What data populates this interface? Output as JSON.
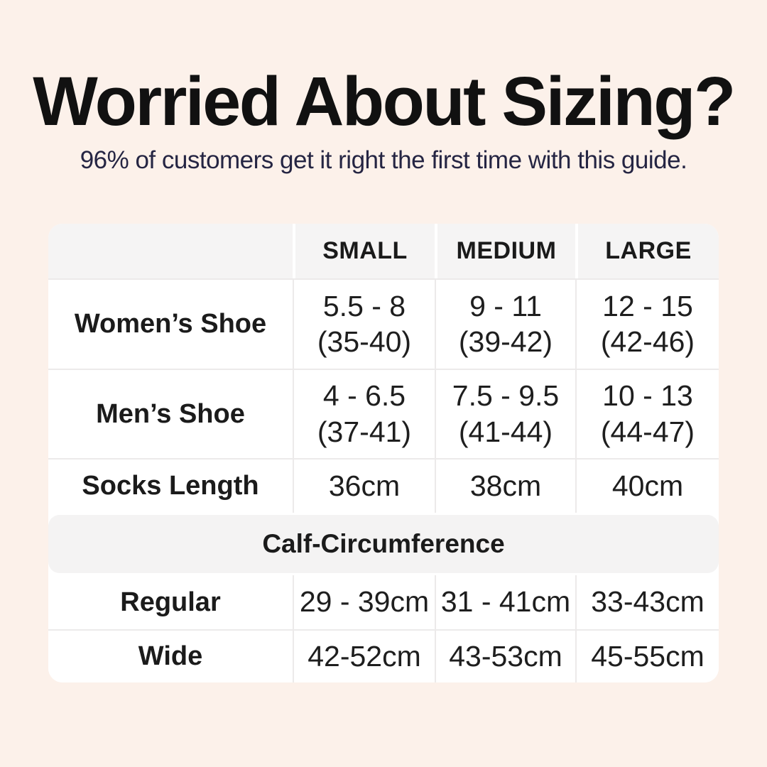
{
  "colors": {
    "background": "#fcf1ea",
    "table_background": "#ffffff",
    "header_band": "#f5f4f4",
    "section_band": "#f4f3f3",
    "divider": "#eceaea",
    "title_text": "#111111",
    "subtitle_text": "#252543",
    "body_text": "#1d1d1d"
  },
  "chart_data": {
    "type": "table",
    "title": "Worried About Sizing?",
    "subtitle": "96% of customers get it right the first time with this guide.",
    "columns": [
      "SMALL",
      "MEDIUM",
      "LARGE"
    ],
    "shoe_rows": [
      {
        "label": "Women’s Shoe",
        "cells": [
          {
            "l1": "5.5 - 8",
            "l2": "(35-40)"
          },
          {
            "l1": "9 - 11",
            "l2": "(39-42)"
          },
          {
            "l1": "12 - 15",
            "l2": "(42-46)"
          }
        ]
      },
      {
        "label": "Men’s Shoe",
        "cells": [
          {
            "l1": "4 - 6.5",
            "l2": "(37-41)"
          },
          {
            "l1": "7.5 - 9.5",
            "l2": "(41-44)"
          },
          {
            "l1": "10 - 13",
            "l2": "(44-47)"
          }
        ]
      },
      {
        "label": "Socks Length",
        "cells": [
          {
            "l1": "36cm"
          },
          {
            "l1": "38cm"
          },
          {
            "l1": "40cm"
          }
        ]
      }
    ],
    "section_header": "Calf-Circumference",
    "calf_rows": [
      {
        "label": "Regular",
        "cells": [
          {
            "l1": "29 - 39cm"
          },
          {
            "l1": "31 - 41cm"
          },
          {
            "l1": "33-43cm"
          }
        ]
      },
      {
        "label": "Wide",
        "cells": [
          {
            "l1": "42-52cm"
          },
          {
            "l1": "43-53cm"
          },
          {
            "l1": "45-55cm"
          }
        ]
      }
    ]
  }
}
